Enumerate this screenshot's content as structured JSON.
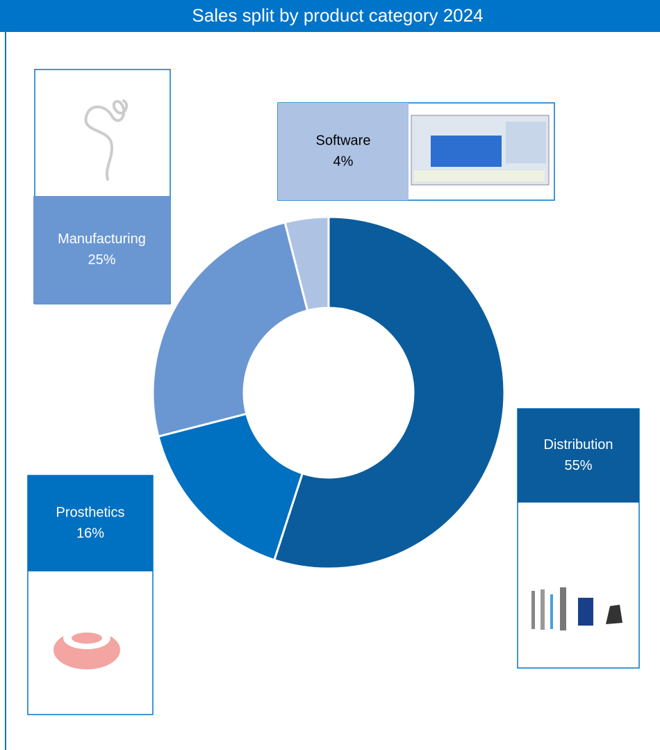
{
  "chart_data": {
    "type": "donut",
    "title": "Sales split by product category 2024",
    "categories": [
      "Distribution",
      "Prosthetics",
      "Manufacturing",
      "Software"
    ],
    "values": [
      55,
      16,
      25,
      4
    ],
    "value_labels": [
      "55%",
      "16%",
      "25%",
      "4%"
    ],
    "colors": [
      "#0a5c9c",
      "#0070c0",
      "#6a96d2",
      "#aec3e4"
    ]
  }
}
